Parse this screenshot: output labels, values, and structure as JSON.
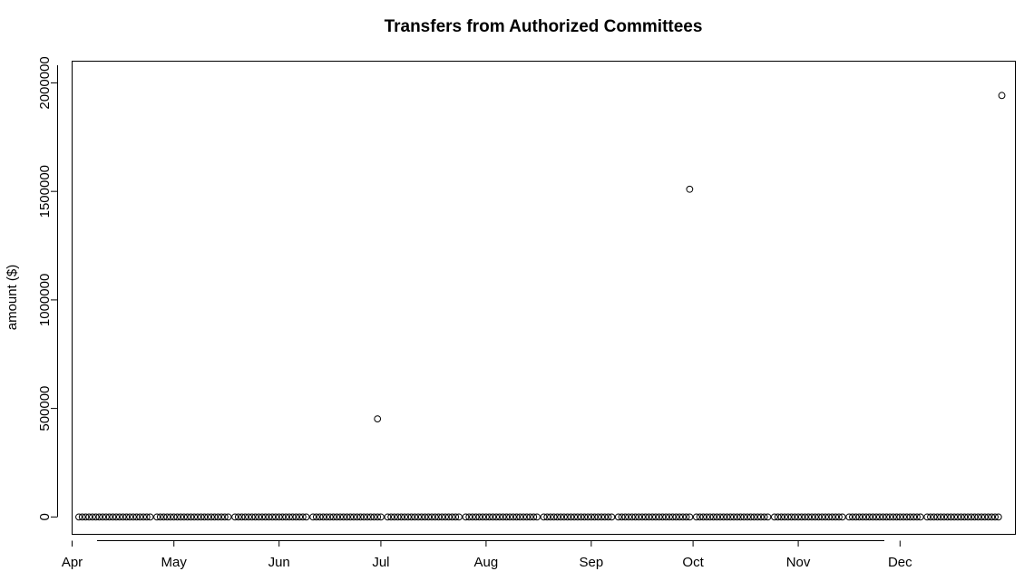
{
  "chart_data": {
    "type": "scatter",
    "title": "Transfers from Authorized Committees",
    "xlabel": "",
    "ylabel": "amount ($)",
    "x_type": "date",
    "xlim": [
      "2015-04-01",
      "2016-01-04"
    ],
    "ylim": [
      -80000,
      2100000
    ],
    "x_ticks": [
      {
        "date": "2015-04-01",
        "label": "Apr"
      },
      {
        "date": "2015-05-01",
        "label": "May"
      },
      {
        "date": "2015-06-01",
        "label": "Jun"
      },
      {
        "date": "2015-07-01",
        "label": "Jul"
      },
      {
        "date": "2015-08-01",
        "label": "Aug"
      },
      {
        "date": "2015-09-01",
        "label": "Sep"
      },
      {
        "date": "2015-10-01",
        "label": "Oct"
      },
      {
        "date": "2015-11-01",
        "label": "Nov"
      },
      {
        "date": "2015-12-01",
        "label": "Dec"
      }
    ],
    "y_ticks": [
      {
        "value": 0,
        "label": "0"
      },
      {
        "value": 500000,
        "label": "500000"
      },
      {
        "value": 1000000,
        "label": "1000000"
      },
      {
        "value": 1500000,
        "label": "1500000"
      },
      {
        "value": 2000000,
        "label": "2000000"
      }
    ],
    "grid": false,
    "legend": "none",
    "marker": "open-circle",
    "near_zero_band": {
      "from": "2015-04-03",
      "to": "2015-12-31",
      "value": 0
    },
    "points": [
      {
        "x": "2015-06-30",
        "y": 452000
      },
      {
        "x": "2015-09-30",
        "y": 1510000
      },
      {
        "x": "2015-12-31",
        "y": 1942000
      }
    ]
  }
}
